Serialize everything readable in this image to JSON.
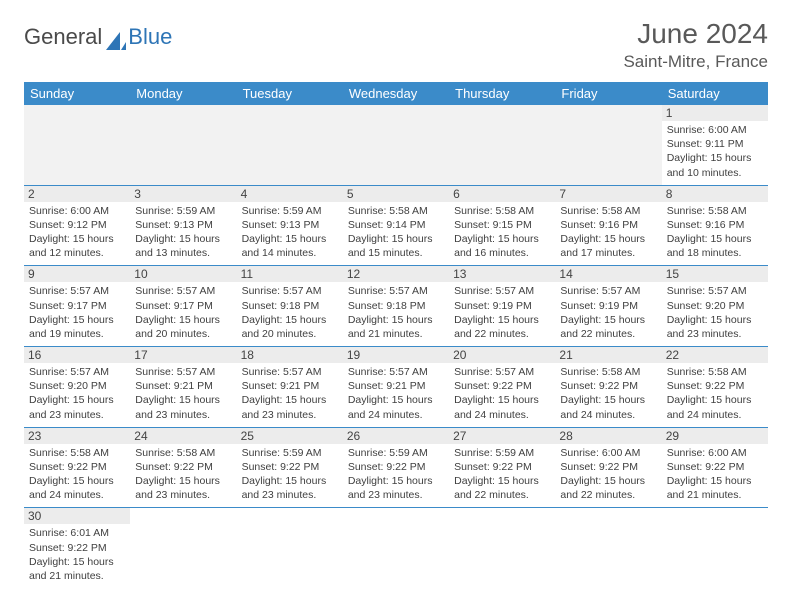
{
  "brand": {
    "part1": "General",
    "part2": "Blue"
  },
  "title": "June 2024",
  "location": "Saint-Mitre, France",
  "colors": {
    "header_bg": "#3b8bc9",
    "header_text": "#ffffff",
    "daynum_bg": "#ececec",
    "cell_border": "#3b8bc9",
    "empty_bg": "#f2f2f2",
    "body_text": "#404040",
    "title_text": "#595959"
  },
  "day_labels": [
    "Sunday",
    "Monday",
    "Tuesday",
    "Wednesday",
    "Thursday",
    "Friday",
    "Saturday"
  ],
  "weeks": [
    [
      null,
      null,
      null,
      null,
      null,
      null,
      {
        "n": "1",
        "sr": "Sunrise: 6:00 AM",
        "ss": "Sunset: 9:11 PM",
        "d1": "Daylight: 15 hours",
        "d2": "and 10 minutes."
      }
    ],
    [
      {
        "n": "2",
        "sr": "Sunrise: 6:00 AM",
        "ss": "Sunset: 9:12 PM",
        "d1": "Daylight: 15 hours",
        "d2": "and 12 minutes."
      },
      {
        "n": "3",
        "sr": "Sunrise: 5:59 AM",
        "ss": "Sunset: 9:13 PM",
        "d1": "Daylight: 15 hours",
        "d2": "and 13 minutes."
      },
      {
        "n": "4",
        "sr": "Sunrise: 5:59 AM",
        "ss": "Sunset: 9:13 PM",
        "d1": "Daylight: 15 hours",
        "d2": "and 14 minutes."
      },
      {
        "n": "5",
        "sr": "Sunrise: 5:58 AM",
        "ss": "Sunset: 9:14 PM",
        "d1": "Daylight: 15 hours",
        "d2": "and 15 minutes."
      },
      {
        "n": "6",
        "sr": "Sunrise: 5:58 AM",
        "ss": "Sunset: 9:15 PM",
        "d1": "Daylight: 15 hours",
        "d2": "and 16 minutes."
      },
      {
        "n": "7",
        "sr": "Sunrise: 5:58 AM",
        "ss": "Sunset: 9:16 PM",
        "d1": "Daylight: 15 hours",
        "d2": "and 17 minutes."
      },
      {
        "n": "8",
        "sr": "Sunrise: 5:58 AM",
        "ss": "Sunset: 9:16 PM",
        "d1": "Daylight: 15 hours",
        "d2": "and 18 minutes."
      }
    ],
    [
      {
        "n": "9",
        "sr": "Sunrise: 5:57 AM",
        "ss": "Sunset: 9:17 PM",
        "d1": "Daylight: 15 hours",
        "d2": "and 19 minutes."
      },
      {
        "n": "10",
        "sr": "Sunrise: 5:57 AM",
        "ss": "Sunset: 9:17 PM",
        "d1": "Daylight: 15 hours",
        "d2": "and 20 minutes."
      },
      {
        "n": "11",
        "sr": "Sunrise: 5:57 AM",
        "ss": "Sunset: 9:18 PM",
        "d1": "Daylight: 15 hours",
        "d2": "and 20 minutes."
      },
      {
        "n": "12",
        "sr": "Sunrise: 5:57 AM",
        "ss": "Sunset: 9:18 PM",
        "d1": "Daylight: 15 hours",
        "d2": "and 21 minutes."
      },
      {
        "n": "13",
        "sr": "Sunrise: 5:57 AM",
        "ss": "Sunset: 9:19 PM",
        "d1": "Daylight: 15 hours",
        "d2": "and 22 minutes."
      },
      {
        "n": "14",
        "sr": "Sunrise: 5:57 AM",
        "ss": "Sunset: 9:19 PM",
        "d1": "Daylight: 15 hours",
        "d2": "and 22 minutes."
      },
      {
        "n": "15",
        "sr": "Sunrise: 5:57 AM",
        "ss": "Sunset: 9:20 PM",
        "d1": "Daylight: 15 hours",
        "d2": "and 23 minutes."
      }
    ],
    [
      {
        "n": "16",
        "sr": "Sunrise: 5:57 AM",
        "ss": "Sunset: 9:20 PM",
        "d1": "Daylight: 15 hours",
        "d2": "and 23 minutes."
      },
      {
        "n": "17",
        "sr": "Sunrise: 5:57 AM",
        "ss": "Sunset: 9:21 PM",
        "d1": "Daylight: 15 hours",
        "d2": "and 23 minutes."
      },
      {
        "n": "18",
        "sr": "Sunrise: 5:57 AM",
        "ss": "Sunset: 9:21 PM",
        "d1": "Daylight: 15 hours",
        "d2": "and 23 minutes."
      },
      {
        "n": "19",
        "sr": "Sunrise: 5:57 AM",
        "ss": "Sunset: 9:21 PM",
        "d1": "Daylight: 15 hours",
        "d2": "and 24 minutes."
      },
      {
        "n": "20",
        "sr": "Sunrise: 5:57 AM",
        "ss": "Sunset: 9:22 PM",
        "d1": "Daylight: 15 hours",
        "d2": "and 24 minutes."
      },
      {
        "n": "21",
        "sr": "Sunrise: 5:58 AM",
        "ss": "Sunset: 9:22 PM",
        "d1": "Daylight: 15 hours",
        "d2": "and 24 minutes."
      },
      {
        "n": "22",
        "sr": "Sunrise: 5:58 AM",
        "ss": "Sunset: 9:22 PM",
        "d1": "Daylight: 15 hours",
        "d2": "and 24 minutes."
      }
    ],
    [
      {
        "n": "23",
        "sr": "Sunrise: 5:58 AM",
        "ss": "Sunset: 9:22 PM",
        "d1": "Daylight: 15 hours",
        "d2": "and 24 minutes."
      },
      {
        "n": "24",
        "sr": "Sunrise: 5:58 AM",
        "ss": "Sunset: 9:22 PM",
        "d1": "Daylight: 15 hours",
        "d2": "and 23 minutes."
      },
      {
        "n": "25",
        "sr": "Sunrise: 5:59 AM",
        "ss": "Sunset: 9:22 PM",
        "d1": "Daylight: 15 hours",
        "d2": "and 23 minutes."
      },
      {
        "n": "26",
        "sr": "Sunrise: 5:59 AM",
        "ss": "Sunset: 9:22 PM",
        "d1": "Daylight: 15 hours",
        "d2": "and 23 minutes."
      },
      {
        "n": "27",
        "sr": "Sunrise: 5:59 AM",
        "ss": "Sunset: 9:22 PM",
        "d1": "Daylight: 15 hours",
        "d2": "and 22 minutes."
      },
      {
        "n": "28",
        "sr": "Sunrise: 6:00 AM",
        "ss": "Sunset: 9:22 PM",
        "d1": "Daylight: 15 hours",
        "d2": "and 22 minutes."
      },
      {
        "n": "29",
        "sr": "Sunrise: 6:00 AM",
        "ss": "Sunset: 9:22 PM",
        "d1": "Daylight: 15 hours",
        "d2": "and 21 minutes."
      }
    ],
    [
      {
        "n": "30",
        "sr": "Sunrise: 6:01 AM",
        "ss": "Sunset: 9:22 PM",
        "d1": "Daylight: 15 hours",
        "d2": "and 21 minutes."
      },
      null,
      null,
      null,
      null,
      null,
      null
    ]
  ]
}
